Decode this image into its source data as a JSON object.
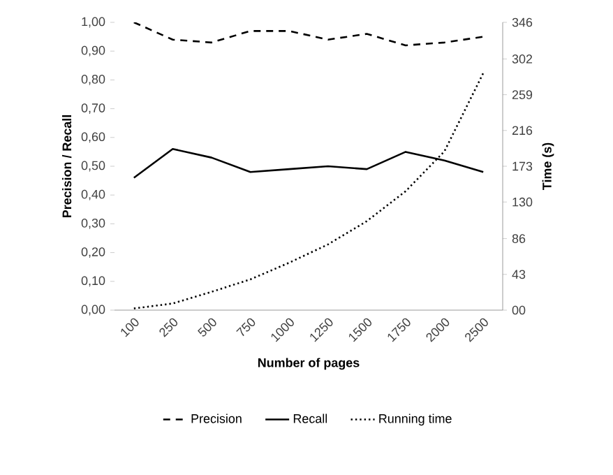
{
  "chart_data": {
    "type": "line",
    "xlabel": "Number of pages",
    "ylabel": "Precision / Recall",
    "y2label": "Time (s)",
    "categories": [
      "100",
      "250",
      "500",
      "750",
      "1000",
      "1250",
      "1500",
      "1750",
      "2000",
      "2500"
    ],
    "series": [
      {
        "name": "Precision",
        "color": "#000000",
        "line_style": "dashed",
        "values": [
          1.0,
          0.94,
          0.93,
          0.97,
          0.97,
          0.94,
          0.96,
          0.92,
          0.93,
          0.95
        ]
      },
      {
        "name": "Recall",
        "color": "#000000",
        "line_style": "solid",
        "values": [
          0.46,
          0.56,
          0.53,
          0.48,
          0.49,
          0.5,
          0.49,
          0.55,
          0.52,
          0.48
        ]
      },
      {
        "name": "Running time",
        "color": "#000000",
        "line_style": "dotted",
        "axis": "y2",
        "values": [
          2,
          8,
          22,
          37,
          57,
          79,
          107,
          143,
          191,
          285
        ]
      }
    ],
    "ylim": [
      0,
      1
    ],
    "yticks": [
      {
        "value": 0,
        "label": "0,00"
      },
      {
        "value": 0.1,
        "label": "0,10"
      },
      {
        "value": 0.2,
        "label": "0,20"
      },
      {
        "value": 0.3,
        "label": "0,30"
      },
      {
        "value": 0.4,
        "label": "0,40"
      },
      {
        "value": 0.5,
        "label": "0,50"
      },
      {
        "value": 0.6,
        "label": "0,60"
      },
      {
        "value": 0.7,
        "label": "0,70"
      },
      {
        "value": 0.8,
        "label": "0,80"
      },
      {
        "value": 0.9,
        "label": "0,90"
      },
      {
        "value": 1,
        "label": "1,00"
      }
    ],
    "y2lim": [
      0,
      346
    ],
    "y2ticks": [
      {
        "value": 0,
        "label": "00"
      },
      43,
      86,
      130,
      173,
      216,
      259,
      302,
      346
    ],
    "legend": "bottom",
    "marker": "none",
    "grid": false
  }
}
